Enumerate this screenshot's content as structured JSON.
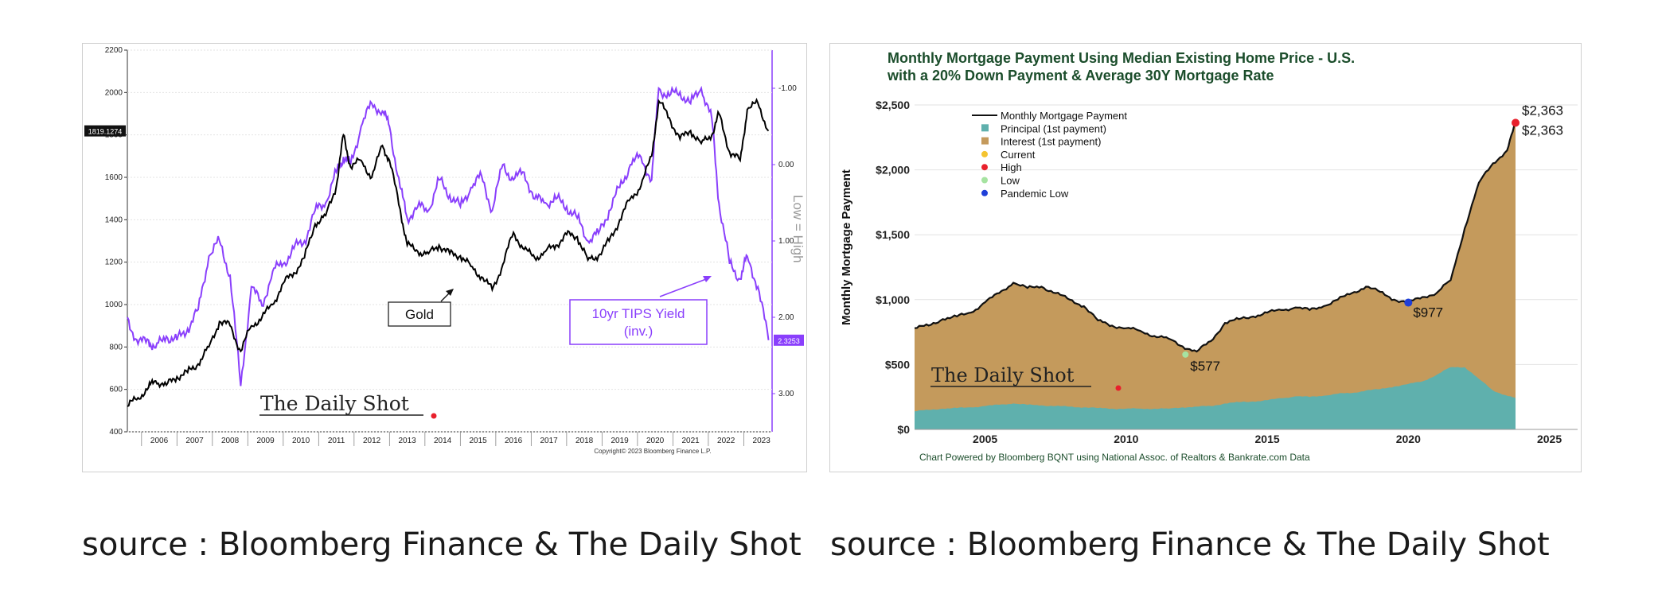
{
  "colors": {
    "gold_line": "#000000",
    "tips_line": "#8a3ffc",
    "principal": "#5fb0ad",
    "interest": "#c49a5c",
    "current": "#f4c430",
    "high": "#e8202c",
    "low": "#a6e3a1",
    "pandemic_low": "#1f3fd8",
    "watermark_dot": "#e8202c"
  },
  "captions": {
    "left": "source : Bloomberg Finance & The Daily Shot",
    "right": "source : Bloomberg Finance & The Daily Shot"
  },
  "chart_data": [
    {
      "type": "line",
      "title": "",
      "ylabel_right": "Low = High",
      "y_left_ticks": [
        "2200",
        "2000",
        "1800",
        "1600",
        "1400",
        "1200",
        "1000",
        "800",
        "600",
        "400"
      ],
      "y_left_range": [
        400,
        2200
      ],
      "y_right_ticks": [
        "-1.00",
        "0.00",
        "1.00",
        "2.00",
        "3.00"
      ],
      "y_right_range_inverted": [
        -1.5,
        3.5
      ],
      "x_ticks": [
        "2006",
        "2007",
        "2008",
        "2009",
        "2010",
        "2011",
        "2012",
        "2013",
        "2014",
        "2015",
        "2016",
        "2017",
        "2018",
        "2019",
        "2020",
        "2021",
        "2022",
        "2023"
      ],
      "x_range": [
        2005.6,
        2023.8
      ],
      "current_labels": {
        "gold": "1819.1274",
        "tips": "2.3253"
      },
      "annotations": {
        "gold": "Gold",
        "tips_line1": "10yr TIPS Yield",
        "tips_line2": "(inv.)"
      },
      "copyright": "Copyright© 2023 Bloomberg Finance L.P.",
      "watermark": "The Daily Shot",
      "series": [
        {
          "name": "Gold",
          "x": [
            2005.6,
            2005.9,
            2006.2,
            2006.4,
            2006.7,
            2007.0,
            2007.3,
            2007.6,
            2007.9,
            2008.2,
            2008.5,
            2008.8,
            2009.1,
            2009.4,
            2009.7,
            2010.0,
            2010.3,
            2010.6,
            2010.9,
            2011.2,
            2011.5,
            2011.7,
            2011.9,
            2012.2,
            2012.5,
            2012.8,
            2013.0,
            2013.3,
            2013.5,
            2013.8,
            2014.1,
            2014.4,
            2014.7,
            2015.0,
            2015.3,
            2015.6,
            2015.9,
            2016.2,
            2016.5,
            2016.8,
            2017.1,
            2017.4,
            2017.7,
            2018.0,
            2018.3,
            2018.6,
            2018.9,
            2019.2,
            2019.5,
            2019.8,
            2020.1,
            2020.4,
            2020.6,
            2020.9,
            2021.2,
            2021.5,
            2021.8,
            2022.1,
            2022.3,
            2022.6,
            2022.9,
            2023.1,
            2023.4,
            2023.7
          ],
          "values": [
            520,
            560,
            610,
            640,
            620,
            660,
            680,
            720,
            800,
            920,
            900,
            780,
            900,
            940,
            1000,
            1100,
            1150,
            1220,
            1380,
            1420,
            1560,
            1800,
            1650,
            1680,
            1600,
            1750,
            1680,
            1450,
            1280,
            1250,
            1240,
            1280,
            1240,
            1230,
            1180,
            1130,
            1070,
            1190,
            1340,
            1260,
            1220,
            1250,
            1280,
            1330,
            1320,
            1210,
            1230,
            1300,
            1400,
            1500,
            1560,
            1700,
            1960,
            1880,
            1780,
            1820,
            1760,
            1800,
            1900,
            1720,
            1680,
            1920,
            1950,
            1819
          ]
        },
        {
          "name": "10yr TIPS Yield (inv.)",
          "x": [
            2005.6,
            2005.9,
            2006.2,
            2006.4,
            2006.7,
            2007.0,
            2007.3,
            2007.6,
            2007.9,
            2008.2,
            2008.5,
            2008.8,
            2009.1,
            2009.4,
            2009.7,
            2010.0,
            2010.3,
            2010.6,
            2010.9,
            2011.2,
            2011.5,
            2011.7,
            2011.9,
            2012.2,
            2012.5,
            2012.8,
            2013.0,
            2013.3,
            2013.5,
            2013.8,
            2014.1,
            2014.4,
            2014.7,
            2015.0,
            2015.3,
            2015.6,
            2015.9,
            2016.2,
            2016.5,
            2016.8,
            2017.1,
            2017.4,
            2017.7,
            2018.0,
            2018.3,
            2018.6,
            2018.9,
            2019.2,
            2019.5,
            2019.8,
            2020.1,
            2020.4,
            2020.6,
            2020.9,
            2021.2,
            2021.5,
            2021.8,
            2022.1,
            2022.3,
            2022.6,
            2022.9,
            2023.1,
            2023.4,
            2023.7
          ],
          "values": [
            2.0,
            2.35,
            2.3,
            2.4,
            2.25,
            2.3,
            2.15,
            1.9,
            1.2,
            1.0,
            1.45,
            2.9,
            1.6,
            1.85,
            1.4,
            1.3,
            1.1,
            1.0,
            0.6,
            0.5,
            0.1,
            -0.1,
            0.0,
            -0.5,
            -0.8,
            -0.7,
            -0.5,
            0.3,
            0.7,
            0.55,
            0.6,
            0.2,
            0.4,
            0.55,
            0.3,
            0.15,
            0.6,
            0.0,
            0.2,
            0.1,
            0.45,
            0.5,
            0.45,
            0.55,
            0.7,
            1.0,
            0.9,
            0.6,
            0.3,
            0.0,
            -0.1,
            0.2,
            -1.0,
            -0.9,
            -0.95,
            -0.8,
            -1.0,
            -0.6,
            0.5,
            1.3,
            1.5,
            1.2,
            1.6,
            2.3
          ]
        }
      ]
    },
    {
      "type": "area",
      "title": "Monthly Mortgage Payment Using Median Existing Home Price - U.S.",
      "subtitle": "with a 20% Down Payment & Average 30Y Mortgage Rate",
      "ylabel": "Monthly Mortgage Payment",
      "y_ticks": [
        "$2,500",
        "$2,000",
        "$1,500",
        "$1,000",
        "$500",
        "$0"
      ],
      "ylim": [
        0,
        2500
      ],
      "x_ticks": [
        "2005",
        "2010",
        "2015",
        "2020",
        "2025"
      ],
      "x_range": [
        2002.5,
        2026.0
      ],
      "legend": [
        "Monthly Mortgage Payment",
        "Principal (1st payment)",
        "Interest (1st payment)",
        "Current",
        "High",
        "Low",
        "Pandemic Low"
      ],
      "legend_position": "top-left",
      "grid": "horizontal",
      "source_note": "Chart Powered by Bloomberg BQNT using National Assoc. of Realtors & Bankrate.com Data",
      "watermark": "The Daily Shot",
      "markers": {
        "current": {
          "x": 2023.8,
          "y": 2363,
          "label": "$2,363"
        },
        "high": {
          "x": 2023.8,
          "y": 2363,
          "label": "$2,363"
        },
        "low": {
          "x": 2012.1,
          "y": 577,
          "label": "$577"
        },
        "pandemic_low": {
          "x": 2020.0,
          "y": 977,
          "label": "$977"
        }
      },
      "x": [
        2002.5,
        2003.0,
        2003.5,
        2004.0,
        2004.5,
        2005.0,
        2005.5,
        2006.0,
        2006.5,
        2007.0,
        2007.5,
        2008.0,
        2008.5,
        2009.0,
        2009.5,
        2010.0,
        2010.5,
        2011.0,
        2011.5,
        2012.0,
        2012.5,
        2013.0,
        2013.5,
        2014.0,
        2014.5,
        2015.0,
        2015.5,
        2016.0,
        2016.5,
        2017.0,
        2017.5,
        2018.0,
        2018.5,
        2019.0,
        2019.5,
        2020.0,
        2020.5,
        2021.0,
        2021.5,
        2022.0,
        2022.5,
        2023.0,
        2023.5,
        2023.8
      ],
      "series": [
        {
          "name": "Monthly Mortgage Payment",
          "values": [
            780,
            800,
            850,
            870,
            900,
            980,
            1050,
            1130,
            1090,
            1100,
            1050,
            1000,
            950,
            840,
            800,
            780,
            760,
            720,
            700,
            640,
            600,
            680,
            820,
            850,
            870,
            900,
            920,
            940,
            920,
            950,
            1000,
            1050,
            1100,
            1060,
            1000,
            977,
            1020,
            1050,
            1150,
            1550,
            1900,
            2050,
            2150,
            2363
          ]
        },
        {
          "name": "Principal (1st payment)",
          "values": [
            140,
            150,
            160,
            165,
            170,
            180,
            190,
            200,
            190,
            185,
            180,
            175,
            170,
            165,
            160,
            160,
            160,
            160,
            160,
            170,
            175,
            180,
            200,
            210,
            215,
            225,
            240,
            255,
            250,
            260,
            275,
            280,
            300,
            310,
            330,
            350,
            370,
            420,
            480,
            480,
            390,
            300,
            260,
            240
          ]
        }
      ]
    }
  ]
}
